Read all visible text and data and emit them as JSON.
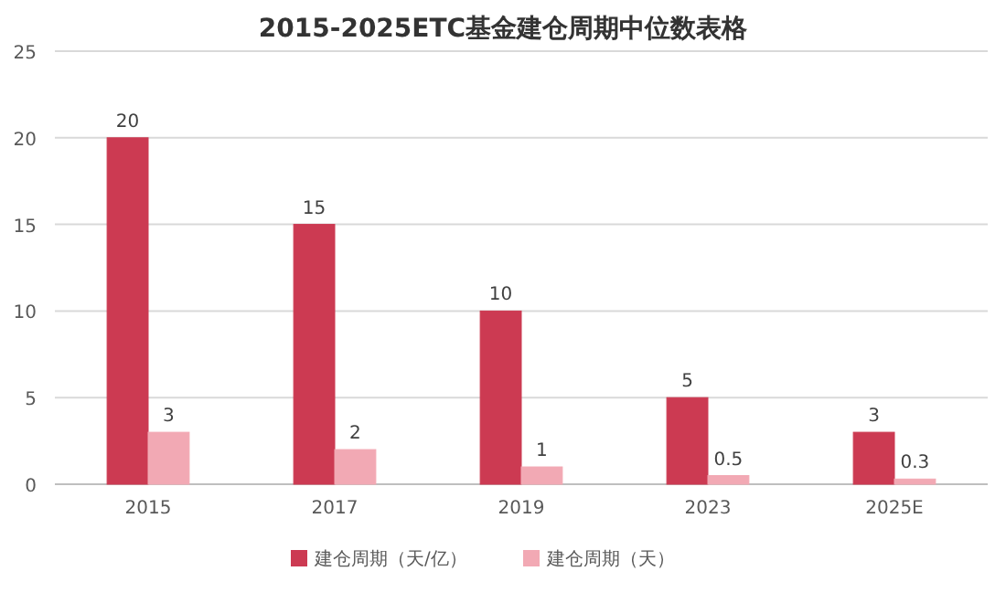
{
  "chart_data": {
    "type": "bar",
    "title": "2015-2025ETC基金建仓周期中位数表格",
    "categories": [
      "2015",
      "2017",
      "2019",
      "2023",
      "2025E"
    ],
    "series": [
      {
        "name": "建仓周期（天/亿）",
        "color": "#cc3a52",
        "values": [
          20,
          15,
          10,
          5,
          3
        ]
      },
      {
        "name": "建仓周期（天）",
        "color": "#f2a9b4",
        "values": [
          3,
          2,
          1,
          0.5,
          0.3
        ]
      }
    ],
    "ylim": [
      0,
      25
    ],
    "yticks": [
      0,
      5,
      10,
      15,
      20,
      25
    ],
    "grid": "y",
    "legend": "bottom",
    "data_labels": true
  }
}
